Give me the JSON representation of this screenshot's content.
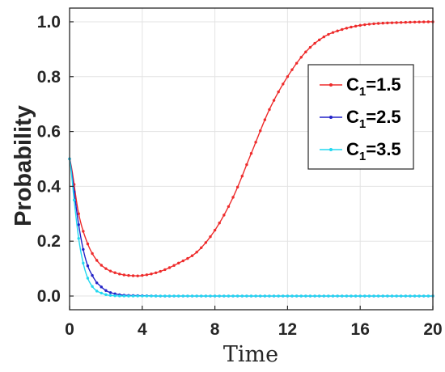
{
  "chart_data": {
    "type": "line",
    "xlabel": "Time",
    "ylabel": "Probability",
    "xlim": [
      0,
      20
    ],
    "ylim": [
      -0.05,
      1.05
    ],
    "xticks": [
      0,
      4,
      8,
      12,
      16,
      20
    ],
    "yticks": [
      0.0,
      0.2,
      0.4,
      0.6,
      0.8,
      1.0
    ],
    "xtick_labels": [
      "0",
      "4",
      "8",
      "12",
      "16",
      "20"
    ],
    "ytick_labels": [
      "0.0",
      "0.2",
      "0.4",
      "0.6",
      "0.8",
      "1.0"
    ],
    "grid": true,
    "legend_position": "top-right",
    "series": [
      {
        "name": "C1=1.5",
        "legend_prefix": "C",
        "legend_sub": "1",
        "legend_suffix": "=1.5",
        "color": "#ee2b2b",
        "x": [
          0,
          0.5,
          1,
          1.5,
          2,
          2.5,
          3,
          3.5,
          4,
          5,
          6,
          7,
          8,
          9,
          10,
          11,
          12,
          13,
          14,
          15,
          16,
          17,
          18,
          19,
          20
        ],
        "y": [
          0.5,
          0.3,
          0.19,
          0.13,
          0.1,
          0.085,
          0.077,
          0.074,
          0.075,
          0.09,
          0.12,
          0.16,
          0.24,
          0.36,
          0.52,
          0.68,
          0.8,
          0.89,
          0.945,
          0.972,
          0.987,
          0.994,
          0.997,
          0.999,
          1.0
        ]
      },
      {
        "name": "C1=2.5",
        "legend_prefix": "C",
        "legend_sub": "1",
        "legend_suffix": "=2.5",
        "color": "#2323c8",
        "x": [
          0,
          0.25,
          0.5,
          0.75,
          1,
          1.25,
          1.5,
          2,
          2.5,
          3,
          4,
          5,
          6,
          8,
          10,
          12,
          14,
          16,
          18,
          20
        ],
        "y": [
          0.5,
          0.38,
          0.26,
          0.17,
          0.11,
          0.075,
          0.048,
          0.02,
          0.008,
          0.003,
          0.001,
          0,
          0,
          0,
          0,
          0,
          0,
          0,
          0,
          0
        ]
      },
      {
        "name": "C1=3.5",
        "legend_prefix": "C",
        "legend_sub": "1",
        "legend_suffix": "=3.5",
        "color": "#22d8f0",
        "x": [
          0,
          0.25,
          0.5,
          0.75,
          1,
          1.25,
          1.5,
          2,
          2.5,
          3,
          4,
          5,
          6,
          8,
          10,
          12,
          14,
          16,
          18,
          20
        ],
        "y": [
          0.5,
          0.35,
          0.21,
          0.12,
          0.065,
          0.035,
          0.018,
          0.005,
          0.001,
          0,
          0,
          0,
          0,
          0,
          0,
          0,
          0,
          0,
          0,
          0
        ]
      }
    ]
  }
}
